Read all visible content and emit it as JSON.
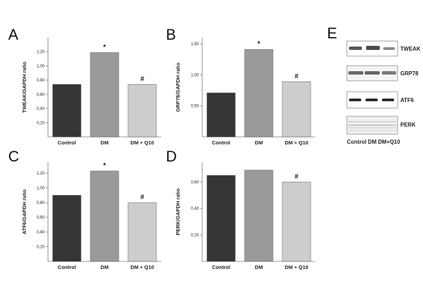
{
  "panel_e": {
    "letter": "E",
    "blots": [
      "TWEAK",
      "GRP78",
      "ATF6",
      "PERK"
    ],
    "caption": "Control DM DM+Q10"
  },
  "colors": {
    "control": "#353535",
    "dm": "#9a9a9a",
    "dmq10": "#cdcdcd"
  },
  "chart_data": [
    {
      "panel": "A",
      "type": "bar",
      "categories": [
        "Control",
        "DM",
        "DM + Q10"
      ],
      "values": [
        0.74,
        1.19,
        0.74
      ],
      "annotations": [
        "",
        "*",
        "#"
      ],
      "ylabel": "TWEAK/GAPDH ratio",
      "ylim": [
        0,
        1.4
      ],
      "yticks": [
        0.2,
        0.4,
        0.6,
        0.8,
        1.0,
        1.2
      ],
      "ytick_labels": [
        "0,20",
        "0,40",
        "0,60",
        "0,80",
        "1,00",
        "1,20"
      ]
    },
    {
      "panel": "B",
      "type": "bar",
      "categories": [
        "Control",
        "DM",
        "DM + Q10"
      ],
      "values": [
        0.71,
        1.41,
        0.89
      ],
      "annotations": [
        "",
        "*",
        "#"
      ],
      "ylabel": "GRP78/GAPDH ratio",
      "ylim": [
        0,
        1.6
      ],
      "yticks": [
        0.5,
        1.0,
        1.5
      ],
      "ytick_labels": [
        "0,50",
        "1,00",
        "1,50"
      ]
    },
    {
      "panel": "C",
      "type": "bar",
      "categories": [
        "Control",
        "DM",
        "DM + Q10"
      ],
      "values": [
        0.9,
        1.23,
        0.8
      ],
      "annotations": [
        "",
        "*",
        "#"
      ],
      "ylabel": "ATF6/GAPDH ratio",
      "ylim": [
        0,
        1.35
      ],
      "yticks": [
        0.2,
        0.4,
        0.6,
        0.8,
        1.0,
        1.2
      ],
      "ytick_labels": [
        "0,20",
        "0,40",
        "0,60",
        "0,80",
        "1,00",
        "1,20"
      ]
    },
    {
      "panel": "D",
      "type": "bar",
      "categories": [
        "Control",
        "DM",
        "DM + Q10"
      ],
      "values": [
        0.65,
        0.69,
        0.6
      ],
      "annotations": [
        "",
        "",
        "#"
      ],
      "ylabel": "PERK/GAPDH ratio",
      "ylim": [
        0,
        0.75
      ],
      "yticks": [
        0.2,
        0.4,
        0.6
      ],
      "ytick_labels": [
        "0,20",
        "0,40",
        "0,60"
      ]
    }
  ]
}
